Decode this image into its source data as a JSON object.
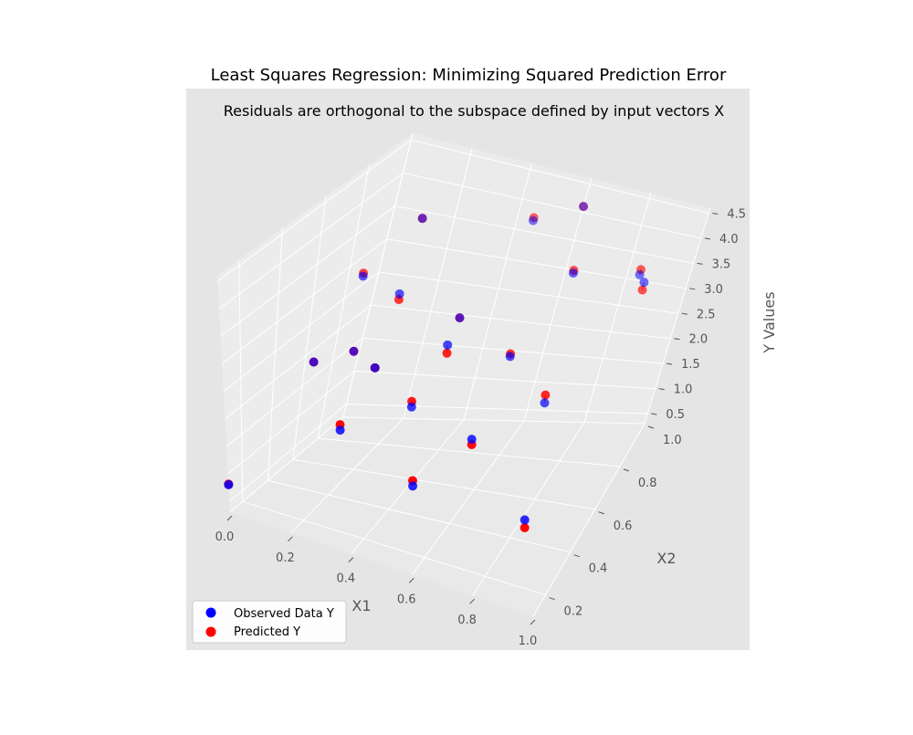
{
  "chart_data": {
    "type": "scatter",
    "title": "Least Squares Regression: Minimizing Squared Prediction Error",
    "subtitle": "Residuals are orthogonal to the subspace defined by input vectors X",
    "xlabel": "X1",
    "ylabel": "X2",
    "zlabel": "Y Values",
    "xlim": [
      0,
      1
    ],
    "ylim": [
      0.1,
      1.0
    ],
    "zlim": [
      0.3,
      4.6
    ],
    "xticks": [
      "0.0",
      "0.2",
      "0.4",
      "0.6",
      "0.8",
      "1.0"
    ],
    "yticks": [
      "0.2",
      "0.4",
      "0.6",
      "0.8",
      "1.0"
    ],
    "zticks": [
      "0.5",
      "1.0",
      "1.5",
      "2.0",
      "2.5",
      "3.0",
      "3.5",
      "4.0",
      "4.5"
    ],
    "grid": true,
    "legend_position": "lower-left",
    "colors": {
      "observed": "#0000ff",
      "predicted": "#ff0000",
      "residual": "#ff8c00",
      "pane": "#e5e5e5"
    },
    "series": [
      {
        "name": "Observed Data Y",
        "key": "observed"
      },
      {
        "name": "Predicted Y",
        "key": "predicted"
      }
    ],
    "points": [
      {
        "x": 0.0,
        "y": 0.1,
        "observed": 0.8,
        "predicted": 0.81
      },
      {
        "x": 0.95,
        "y": 0.15,
        "observed": 1.85,
        "predicted": 1.7
      },
      {
        "x": 0.6,
        "y": 0.12,
        "observed": 1.9,
        "predicted": 2.0
      },
      {
        "x": 0.5,
        "y": 0.3,
        "observed": 2.6,
        "predicted": 2.7
      },
      {
        "x": 0.75,
        "y": 0.2,
        "observed": 2.8,
        "predicted": 2.7
      },
      {
        "x": 0.85,
        "y": 0.45,
        "observed": 2.75,
        "predicted": 2.9
      },
      {
        "x": 0.35,
        "y": 0.15,
        "observed": 2.35,
        "predicted": 2.45
      },
      {
        "x": 0.7,
        "y": 0.5,
        "observed": 3.2,
        "predicted": 3.25
      },
      {
        "x": 0.55,
        "y": 0.4,
        "observed": 3.5,
        "predicted": 3.35
      },
      {
        "x": 0.75,
        "y": 0.72,
        "observed": 4.05,
        "predicted": 4.1
      },
      {
        "x": 0.9,
        "y": 0.85,
        "observed": 3.75,
        "predicted": 3.85
      },
      {
        "x": 0.95,
        "y": 0.78,
        "observed": 3.95,
        "predicted": 3.8
      },
      {
        "x": 0.3,
        "y": 0.55,
        "observed": 3.55,
        "predicted": 3.45
      },
      {
        "x": 0.45,
        "y": 0.65,
        "observed": 3.05,
        "predicted": 3.05
      },
      {
        "x": 0.15,
        "y": 0.6,
        "observed": 3.5,
        "predicted": 3.55
      },
      {
        "x": 0.2,
        "y": 0.5,
        "observed": 2.55,
        "predicted": 2.55
      },
      {
        "x": 0.1,
        "y": 0.45,
        "observed": 2.35,
        "predicted": 2.35
      },
      {
        "x": 0.2,
        "y": 0.8,
        "observed": 4.0,
        "predicted": 4.0
      },
      {
        "x": 0.5,
        "y": 0.9,
        "observed": 4.05,
        "predicted": 4.1
      },
      {
        "x": 0.6,
        "y": 1.0,
        "observed": 4.1,
        "predicted": 4.1
      },
      {
        "x": 0.35,
        "y": 0.35,
        "observed": 2.9,
        "predicted": 2.9
      }
    ]
  }
}
